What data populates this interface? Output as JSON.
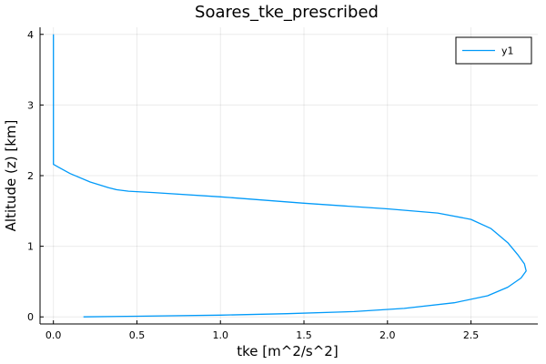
{
  "chart_data": {
    "type": "line",
    "title": "Soares_tke_prescribed",
    "xlabel": "tke [m^2/s^2]",
    "ylabel": "Altitude (z) [km]",
    "xlim": [
      -0.08,
      2.9
    ],
    "ylim": [
      -0.1,
      4.1
    ],
    "xticks": [
      0.0,
      0.5,
      1.0,
      1.5,
      2.0,
      2.5
    ],
    "xtick_labels": [
      "0.0",
      "0.5",
      "1.0",
      "1.5",
      "2.0",
      "2.5"
    ],
    "yticks": [
      0,
      1,
      2,
      3,
      4
    ],
    "ytick_labels": [
      "0",
      "1",
      "2",
      "3",
      "4"
    ],
    "grid": true,
    "legend_position": "top-right",
    "series": [
      {
        "name": "y1",
        "color": "#009af9",
        "x": [
          0.18,
          0.5,
          1.0,
          1.4,
          1.8,
          2.1,
          2.4,
          2.6,
          2.72,
          2.8,
          2.83,
          2.82,
          2.78,
          2.72,
          2.62,
          2.5,
          2.3,
          2.0,
          1.5,
          1.0,
          0.6,
          0.45,
          0.38,
          0.33,
          0.22,
          0.1,
          0.03,
          0.0,
          0.0,
          0.0,
          0.0
        ],
        "y": [
          0.0,
          0.01,
          0.025,
          0.045,
          0.075,
          0.12,
          0.2,
          0.3,
          0.42,
          0.55,
          0.65,
          0.75,
          0.88,
          1.05,
          1.25,
          1.38,
          1.47,
          1.53,
          1.61,
          1.7,
          1.76,
          1.78,
          1.8,
          1.83,
          1.91,
          2.03,
          2.12,
          2.16,
          2.5,
          3.5,
          4.0
        ]
      }
    ]
  }
}
